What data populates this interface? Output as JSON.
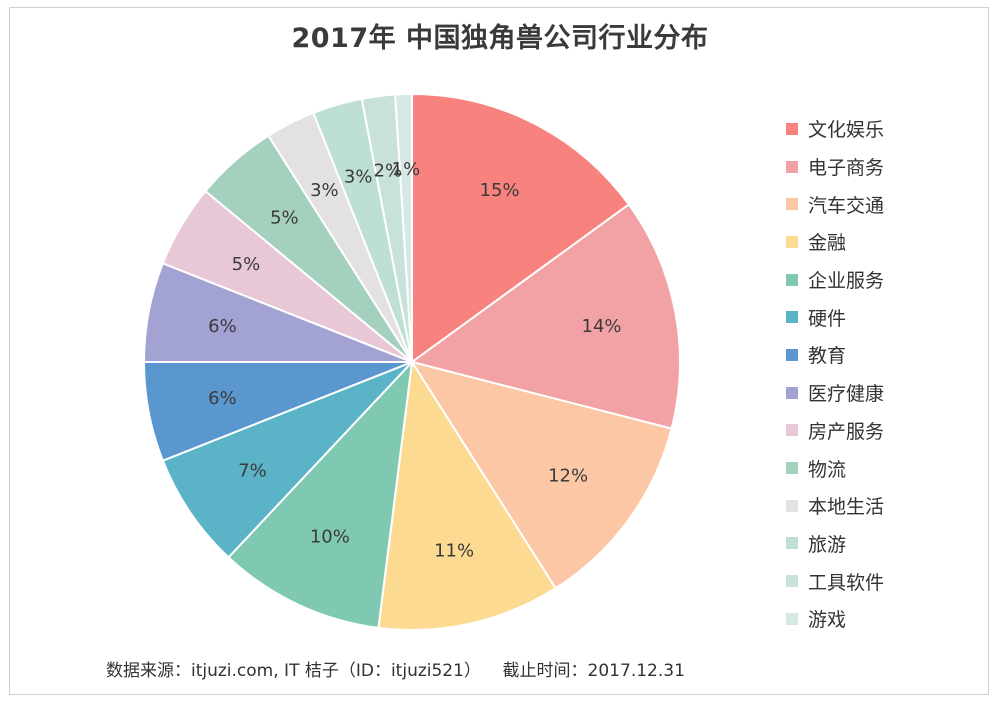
{
  "title": "2017年 中国独角兽公司行业分布",
  "source_text": "数据来源：itjuzi.com, IT 桔子（ID：itjuzi521）    截止时间：2017.12.31",
  "chart_data": {
    "type": "pie",
    "title": "2017年 中国独角兽公司行业分布",
    "legend_position": "right",
    "slices": [
      {
        "label": "文化娱乐",
        "value": 15,
        "value_label": "15%",
        "color": "#F8827E"
      },
      {
        "label": "电子商务",
        "value": 14,
        "value_label": "14%",
        "color": "#F2A2A4"
      },
      {
        "label": "汽车交通",
        "value": 12,
        "value_label": "12%",
        "color": "#FBC7A5"
      },
      {
        "label": "金融",
        "value": 11,
        "value_label": "11%",
        "color": "#FCDA92"
      },
      {
        "label": "企业服务",
        "value": 10,
        "value_label": "10%",
        "color": "#7FC9B3"
      },
      {
        "label": "硬件",
        "value": 7,
        "value_label": "7%",
        "color": "#5BB3C8"
      },
      {
        "label": "教育",
        "value": 6,
        "value_label": "6%",
        "color": "#5B97CF"
      },
      {
        "label": "医疗健康",
        "value": 6,
        "value_label": "6%",
        "color": "#A2A3D2"
      },
      {
        "label": "房产服务",
        "value": 5,
        "value_label": "5%",
        "color": "#E8C7D6"
      },
      {
        "label": "物流",
        "value": 5,
        "value_label": "5%",
        "color": "#A4D1BE"
      },
      {
        "label": "本地生活",
        "value": 3,
        "value_label": "3%",
        "color": "#E3E1E2"
      },
      {
        "label": "旅游",
        "value": 3,
        "value_label": "3%",
        "color": "#BEDFD5"
      },
      {
        "label": "工具软件",
        "value": 2,
        "value_label": "2%",
        "color": "#C8E2DB"
      },
      {
        "label": "游戏",
        "value": 1,
        "value_label": "1%",
        "color": "#D6E8E4"
      }
    ]
  }
}
